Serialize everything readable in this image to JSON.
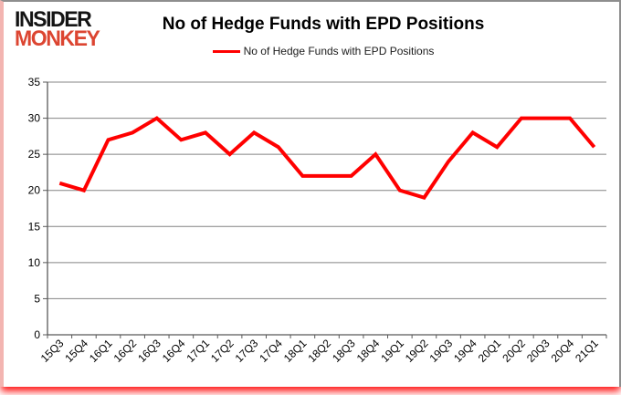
{
  "logo": {
    "line1": "INSIDER",
    "line2": "MONKEY"
  },
  "colors": {
    "line": "#FF0000",
    "grid": "#848484",
    "axis": "#595959",
    "logo_black": "#141414",
    "logo_red": "#DC4531",
    "text": "#000000",
    "border_gray": "#8E8E8E",
    "border_pink": "#F3B5B1",
    "bottom_glow": "#FF0000"
  },
  "chart_data": {
    "type": "line",
    "title": "No of Hedge Funds with EPD Positions",
    "categories": [
      "15Q3",
      "15Q4",
      "16Q1",
      "16Q2",
      "16Q3",
      "16Q4",
      "17Q1",
      "17Q2",
      "17Q3",
      "17Q4",
      "18Q1",
      "18Q2",
      "18Q3",
      "18Q4",
      "19Q1",
      "19Q2",
      "19Q3",
      "19Q4",
      "20Q1",
      "20Q2",
      "20Q3",
      "20Q4",
      "21Q1"
    ],
    "series": [
      {
        "name": "No of Hedge Funds with EPD Positions",
        "color": "#FF0000",
        "values": [
          21,
          20,
          27,
          28,
          30,
          27,
          28,
          25,
          28,
          26,
          22,
          22,
          22,
          25,
          20,
          19,
          24,
          28,
          26,
          30,
          30,
          30,
          26
        ]
      }
    ],
    "xlabel": "",
    "ylabel": "",
    "ylim": [
      0,
      35
    ],
    "ytick_step": 5,
    "grid": true,
    "legend_position": "top"
  }
}
